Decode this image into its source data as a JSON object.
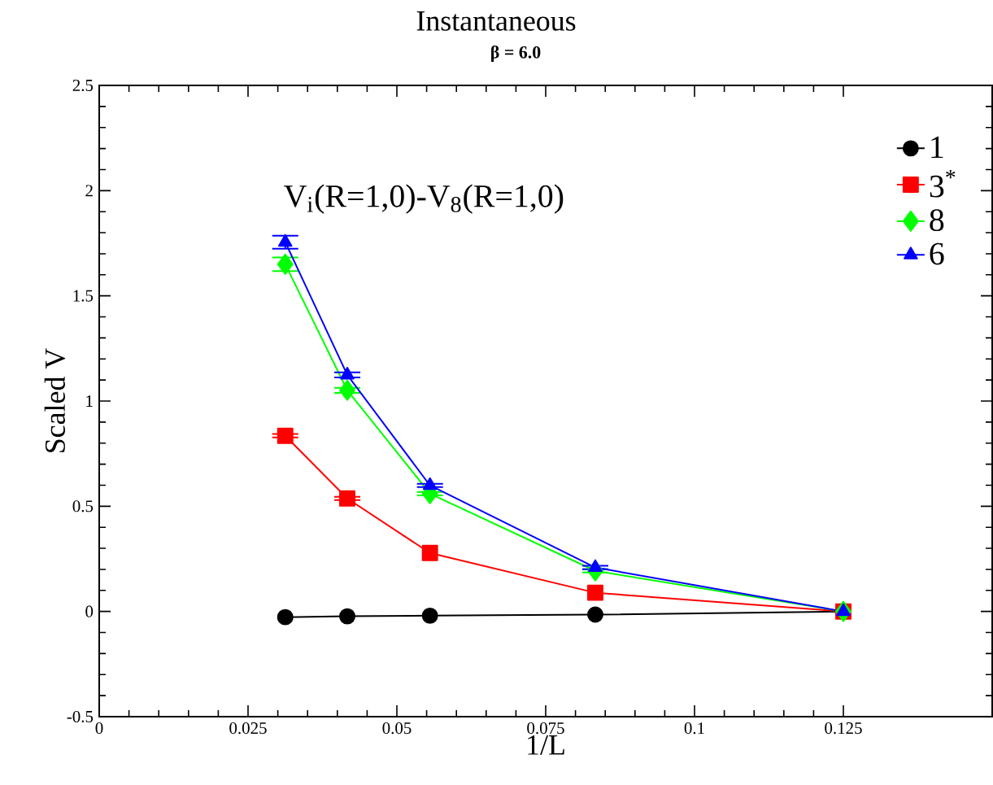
{
  "chart_data": {
    "type": "line",
    "title": "Instantaneous",
    "subtitle": "β = 6.0",
    "xlabel": "1/L",
    "ylabel": "Scaled V",
    "annotations": [
      "V$_{i}$(R=1,0)-V$_{8}$(R=1,0)"
    ],
    "x": [
      0.03125,
      0.04167,
      0.05556,
      0.08333,
      0.125
    ],
    "series": [
      {
        "name": "1",
        "color": "#000000",
        "marker": "circle",
        "values": [
          -0.027,
          -0.023,
          -0.02,
          -0.015,
          0
        ]
      },
      {
        "name": "3$^{*}$",
        "color": "#ff0000",
        "marker": "square",
        "values": [
          0.835,
          0.537,
          0.278,
          0.089,
          0
        ],
        "errors": [
          0.008,
          0.008,
          null,
          null,
          null
        ]
      },
      {
        "name": "8",
        "color": "#00ff00",
        "marker": "diamond",
        "values": [
          1.65,
          1.051,
          0.56,
          0.193,
          0
        ],
        "errors": [
          0.032,
          0.012,
          0.008,
          0.008,
          null
        ]
      },
      {
        "name": "6",
        "color": "#0000ff",
        "marker": "triangle",
        "values": [
          1.755,
          1.124,
          0.599,
          0.209,
          0
        ],
        "errors": [
          0.031,
          0.012,
          0.008,
          0.008,
          null
        ]
      }
    ],
    "xlim": [
      0,
      0.15
    ],
    "ylim": [
      -0.5,
      2.5
    ],
    "xticks": [
      0,
      0.025,
      0.05,
      0.075,
      0.1,
      0.125
    ],
    "yticks": [
      -0.5,
      0,
      0.5,
      1,
      1.5,
      2,
      2.5
    ],
    "grid": false,
    "legend": "top right",
    "line_style": "solid"
  }
}
